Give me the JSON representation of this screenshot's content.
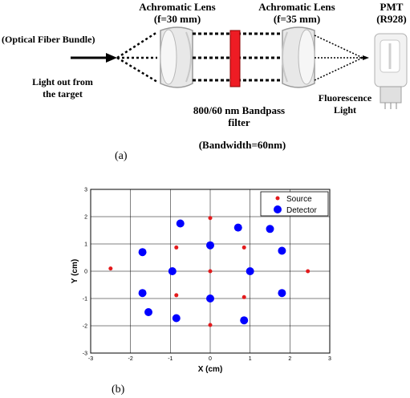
{
  "diagram": {
    "lens1_label": "Achromatic Lens",
    "lens1_focal": "(f=30 mm)",
    "lens2_label": "Achromatic Lens",
    "lens2_focal": "(f=35 mm)",
    "pmt_label": "PMT",
    "pmt_model": "(R928)",
    "fiber_label": "(Optical Fiber  Bundle)",
    "light_out_line1": "Light out from",
    "light_out_line2": "the target",
    "filter_line1": "800/60 nm  Bandpass",
    "filter_line2": "filter",
    "bandwidth": "(Bandwidth=60nm)",
    "fluor_line1": "Fluorescence",
    "fluor_line2": "Light",
    "caption": "(a)",
    "filter_color": "#ee1c24"
  },
  "plot_caption": "(b)",
  "chart_data": {
    "type": "scatter",
    "xlabel": "X (cm)",
    "ylabel": "Y (cm)",
    "xlim": [
      -3,
      3
    ],
    "ylim": [
      -3,
      3
    ],
    "xticks": [
      -3,
      -2,
      -1,
      0,
      1,
      2,
      3
    ],
    "yticks": [
      -3,
      -2,
      -1,
      0,
      1,
      2,
      3
    ],
    "grid": true,
    "legend_position": "top-right",
    "series": [
      {
        "name": "Source",
        "color": "#e31a1c",
        "marker": "small-dot",
        "points": [
          [
            0,
            1.95
          ],
          [
            -0.85,
            0.87
          ],
          [
            0.85,
            0.87
          ],
          [
            -2.5,
            0.1
          ],
          [
            0,
            0
          ],
          [
            2.45,
            0
          ],
          [
            -0.85,
            -0.88
          ],
          [
            0.85,
            -0.95
          ],
          [
            0,
            -1.97
          ]
        ]
      },
      {
        "name": "Detector",
        "color": "#0000ff",
        "marker": "large-dot",
        "points": [
          [
            -0.75,
            1.75
          ],
          [
            0.7,
            1.6
          ],
          [
            1.5,
            1.55
          ],
          [
            -1.7,
            0.7
          ],
          [
            0,
            0.95
          ],
          [
            1.8,
            0.75
          ],
          [
            -0.95,
            0
          ],
          [
            1.0,
            0
          ],
          [
            -1.7,
            -0.8
          ],
          [
            0,
            -1.0
          ],
          [
            1.8,
            -0.8
          ],
          [
            -1.55,
            -1.5
          ],
          [
            -0.85,
            -1.72
          ],
          [
            0.85,
            -1.8
          ]
        ]
      }
    ]
  }
}
